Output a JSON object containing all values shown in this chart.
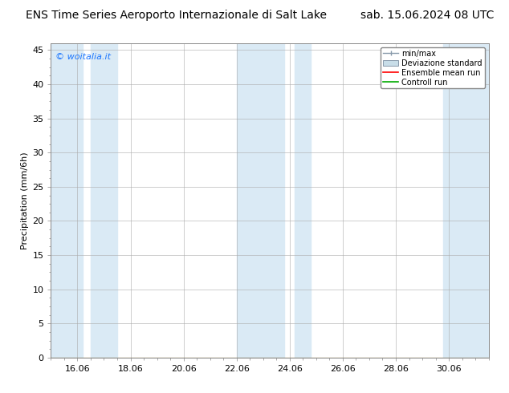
{
  "title_left": "ENS Time Series Aeroporto Internazionale di Salt Lake",
  "title_right": "sab. 15.06.2024 08 UTC",
  "ylabel": "Precipitation (mm/6h)",
  "ylim": [
    0,
    46
  ],
  "yticks": [
    0,
    5,
    10,
    15,
    20,
    25,
    30,
    35,
    40,
    45
  ],
  "xlim": [
    0,
    16.5
  ],
  "xtick_labels": [
    "16.06",
    "18.06",
    "20.06",
    "22.06",
    "24.06",
    "26.06",
    "28.06",
    "30.06"
  ],
  "xtick_positions": [
    1.0,
    3.0,
    5.0,
    7.0,
    9.0,
    11.0,
    13.0,
    15.0
  ],
  "shaded_bands": [
    [
      0.0,
      1.2
    ],
    [
      1.5,
      2.5
    ],
    [
      7.0,
      8.8
    ],
    [
      9.2,
      9.8
    ],
    [
      14.8,
      16.5
    ]
  ],
  "shade_color": "#daeaf5",
  "legend_entries": [
    "min/max",
    "Deviazione standard",
    "Ensemble mean run",
    "Controll run"
  ],
  "legend_colors_line": [
    "#8899aa",
    "#aabbcc",
    "#ff0000",
    "#00aa00"
  ],
  "watermark": "© woitalia.it",
  "watermark_color": "#1a75ff",
  "background_color": "#ffffff",
  "plot_bg_color": "#ffffff",
  "border_color": "#888888",
  "grid_color": "#aaaaaa",
  "title_fontsize": 10,
  "axis_label_fontsize": 8,
  "tick_fontsize": 8
}
